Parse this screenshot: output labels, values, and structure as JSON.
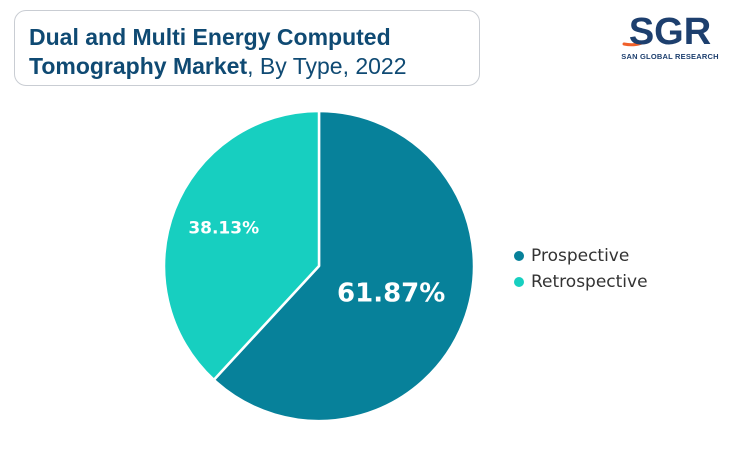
{
  "title": {
    "bold": "Dual and Multi Energy Computed Tomography Market",
    "normal": ", By Type, 2022"
  },
  "logo": {
    "letters": "SGR",
    "tagline": "SAN GLOBAL RESEARCH"
  },
  "chart_data": {
    "type": "pie",
    "slices": [
      {
        "label": "Prospective",
        "value": 61.87,
        "display": "61.87%",
        "color": "#07819a"
      },
      {
        "label": "Retrospective",
        "value": 38.13,
        "display": "38.13%",
        "color": "#17cfc0"
      }
    ],
    "legend_position": "right"
  }
}
